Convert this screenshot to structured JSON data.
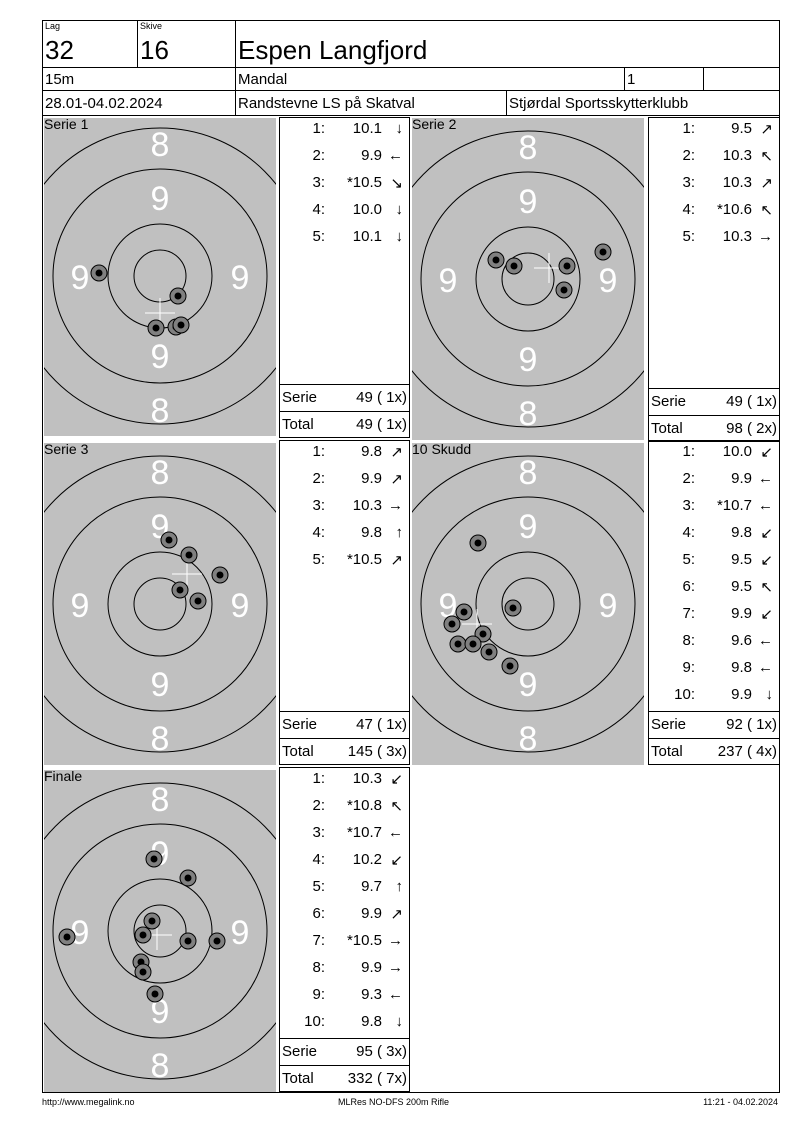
{
  "header": {
    "lag_label": "Lag",
    "lag": "32",
    "skive_label": "Skive",
    "skive": "16",
    "name": "Espen Langfjord",
    "distance": "15m",
    "club": "Mandal",
    "klasse": "1",
    "extra": "",
    "date": "28.01-04.02.2024",
    "event": "Randstevne LS på Skatval",
    "organizer": "Stjørdal Sportsskytterklubb"
  },
  "ring_labels": {
    "outer": "8",
    "inner": "9"
  },
  "panels": [
    {
      "title": "Serie 1",
      "shots": [
        {
          "n": "1:",
          "v": "10.1",
          "dir": "↓"
        },
        {
          "n": "2:",
          "v": "9.9",
          "dir": "←"
        },
        {
          "n": "3:",
          "v": "*10.5",
          "dir": "↘"
        },
        {
          "n": "4:",
          "v": "10.0",
          "dir": "↓"
        },
        {
          "n": "5:",
          "v": "10.1",
          "dir": "↓"
        }
      ],
      "serie_label": "Serie",
      "serie": "49 ( 1x)",
      "total_label": "Total",
      "total": "49 ( 1x)"
    },
    {
      "title": "Serie 2",
      "shots": [
        {
          "n": "1:",
          "v": "9.5",
          "dir": "↗"
        },
        {
          "n": "2:",
          "v": "10.3",
          "dir": "↖"
        },
        {
          "n": "3:",
          "v": "10.3",
          "dir": "↗"
        },
        {
          "n": "4:",
          "v": "*10.6",
          "dir": "↖"
        },
        {
          "n": "5:",
          "v": "10.3",
          "dir": "→"
        }
      ],
      "serie_label": "Serie",
      "serie": "49 ( 1x)",
      "total_label": "Total",
      "total": "98 ( 2x)"
    },
    {
      "title": "Serie 3",
      "shots": [
        {
          "n": "1:",
          "v": "9.8",
          "dir": "↗"
        },
        {
          "n": "2:",
          "v": "9.9",
          "dir": "↗"
        },
        {
          "n": "3:",
          "v": "10.3",
          "dir": "→"
        },
        {
          "n": "4:",
          "v": "9.8",
          "dir": "↑"
        },
        {
          "n": "5:",
          "v": "*10.5",
          "dir": "↗"
        }
      ],
      "serie_label": "Serie",
      "serie": "47 ( 1x)",
      "total_label": "Total",
      "total": "145 ( 3x)"
    },
    {
      "title": "10 Skudd",
      "shots": [
        {
          "n": "1:",
          "v": "10.0",
          "dir": "↙"
        },
        {
          "n": "2:",
          "v": "9.9",
          "dir": "←"
        },
        {
          "n": "3:",
          "v": "*10.7",
          "dir": "←"
        },
        {
          "n": "4:",
          "v": "9.8",
          "dir": "↙"
        },
        {
          "n": "5:",
          "v": "9.5",
          "dir": "↙"
        },
        {
          "n": "6:",
          "v": "9.5",
          "dir": "↖"
        },
        {
          "n": "7:",
          "v": "9.9",
          "dir": "↙"
        },
        {
          "n": "8:",
          "v": "9.6",
          "dir": "←"
        },
        {
          "n": "9:",
          "v": "9.8",
          "dir": "←"
        },
        {
          "n": "10:",
          "v": "9.9",
          "dir": "↓"
        }
      ],
      "serie_label": "Serie",
      "serie": "92 ( 1x)",
      "total_label": "Total",
      "total": "237 ( 4x)"
    },
    {
      "title": "Finale",
      "shots": [
        {
          "n": "1:",
          "v": "10.3",
          "dir": "↙"
        },
        {
          "n": "2:",
          "v": "*10.8",
          "dir": "↖"
        },
        {
          "n": "3:",
          "v": "*10.7",
          "dir": "←"
        },
        {
          "n": "4:",
          "v": "10.2",
          "dir": "↙"
        },
        {
          "n": "5:",
          "v": "9.7",
          "dir": "↑"
        },
        {
          "n": "6:",
          "v": "9.9",
          "dir": "↗"
        },
        {
          "n": "7:",
          "v": "*10.5",
          "dir": "→"
        },
        {
          "n": "8:",
          "v": "9.9",
          "dir": "→"
        },
        {
          "n": "9:",
          "v": "9.3",
          "dir": "←"
        },
        {
          "n": "10:",
          "v": "9.8",
          "dir": "↓"
        }
      ],
      "serie_label": "Serie",
      "serie": "95 ( 3x)",
      "total_label": "Total",
      "total": "332 ( 7x)"
    }
  ],
  "footer": {
    "url": "http://www.megalink.no",
    "software": "MLRes NO-DFS 200m Rifle",
    "timestamp": "11:21 - 04.02.2024"
  },
  "colors": {
    "target": "#c0c0c0",
    "shot_outer": "#808080",
    "shot_inner": "#000000"
  }
}
